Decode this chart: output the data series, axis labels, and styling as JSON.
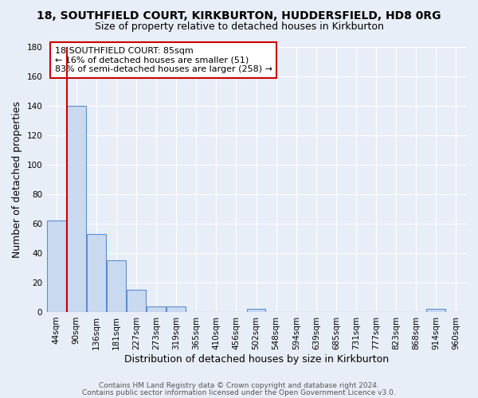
{
  "title1": "18, SOUTHFIELD COURT, KIRKBURTON, HUDDERSFIELD, HD8 0RG",
  "title2": "Size of property relative to detached houses in Kirkburton",
  "xlabel": "Distribution of detached houses by size in Kirkburton",
  "ylabel": "Number of detached properties",
  "bar_labels": [
    "44sqm",
    "90sqm",
    "136sqm",
    "181sqm",
    "227sqm",
    "273sqm",
    "319sqm",
    "365sqm",
    "410sqm",
    "456sqm",
    "502sqm",
    "548sqm",
    "594sqm",
    "639sqm",
    "685sqm",
    "731sqm",
    "777sqm",
    "823sqm",
    "868sqm",
    "914sqm",
    "960sqm"
  ],
  "bar_values": [
    62,
    140,
    53,
    35,
    15,
    4,
    4,
    0,
    0,
    0,
    2,
    0,
    0,
    0,
    0,
    0,
    0,
    0,
    0,
    2,
    0
  ],
  "bar_color": "#c9d9f0",
  "bar_edge_color": "#5b8fcc",
  "bar_edge_width": 0.8,
  "background_color": "#e8eef8",
  "grid_color": "#ffffff",
  "ylim": [
    0,
    180
  ],
  "yticks": [
    0,
    20,
    40,
    60,
    80,
    100,
    120,
    140,
    160,
    180
  ],
  "red_line_x": 0.525,
  "annotation_text": "18 SOUTHFIELD COURT: 85sqm\n← 16% of detached houses are smaller (51)\n83% of semi-detached houses are larger (258) →",
  "annotation_box_color": "#ffffff",
  "annotation_box_edge": "#cc0000",
  "footer1": "Contains HM Land Registry data © Crown copyright and database right 2024.",
  "footer2": "Contains public sector information licensed under the Open Government Licence v3.0.",
  "title1_fontsize": 10,
  "title2_fontsize": 9,
  "axis_label_fontsize": 9,
  "tick_fontsize": 7.5,
  "annotation_fontsize": 8,
  "footer_fontsize": 6.5
}
